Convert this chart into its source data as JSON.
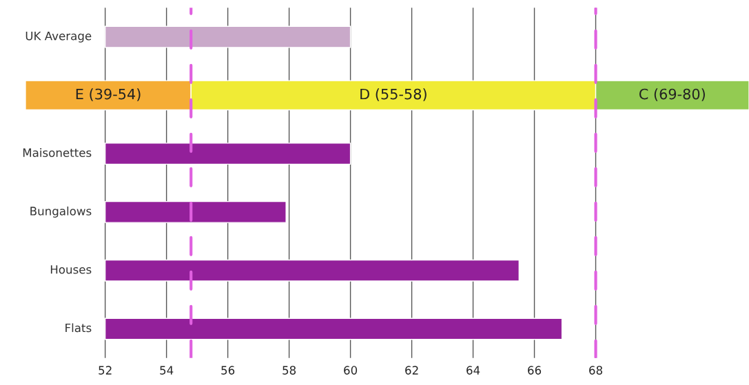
{
  "chart_data": {
    "type": "bar",
    "orientation": "horizontal",
    "categories": [
      "UK Average",
      null,
      "Maisonettes",
      "Bungalows",
      "Houses",
      "Flats"
    ],
    "series": [
      {
        "colors": [
          "#c9a9c9",
          null,
          "#93209a",
          "#93209a",
          "#93209a",
          "#93209a"
        ],
        "base": [
          52,
          null,
          52,
          52,
          52,
          52
        ],
        "values": [
          8,
          null,
          8,
          5.9,
          13.5,
          14.9
        ]
      },
      {
        "name": "E (39-54)",
        "color": "#f5ad35",
        "base": [
          null,
          49.4,
          null,
          null,
          null,
          null
        ],
        "values": [
          null,
          5.4,
          null,
          null,
          null,
          null
        ]
      },
      {
        "name": "D (55-58)",
        "color": "#f0eb35",
        "base": [
          null,
          54.8,
          null,
          null,
          null,
          null
        ],
        "values": [
          null,
          13.2,
          null,
          null,
          null,
          null
        ]
      },
      {
        "name": "C (69-80)",
        "color": "#93cb52",
        "base": [
          null,
          68,
          null,
          null,
          null,
          null
        ],
        "values": [
          null,
          5,
          null,
          null,
          null,
          null
        ]
      }
    ],
    "xlim": [
      49.4,
      73
    ],
    "xticks": [
      52,
      54,
      56,
      58,
      60,
      62,
      64,
      66,
      68
    ],
    "grid": "x",
    "ref_lines": [
      {
        "axis": "x",
        "value": 54.8,
        "color": "#e060e0",
        "line_style": "dashed"
      },
      {
        "axis": "x",
        "value": 68,
        "color": "#e060e0",
        "line_style": "dashed"
      }
    ]
  }
}
